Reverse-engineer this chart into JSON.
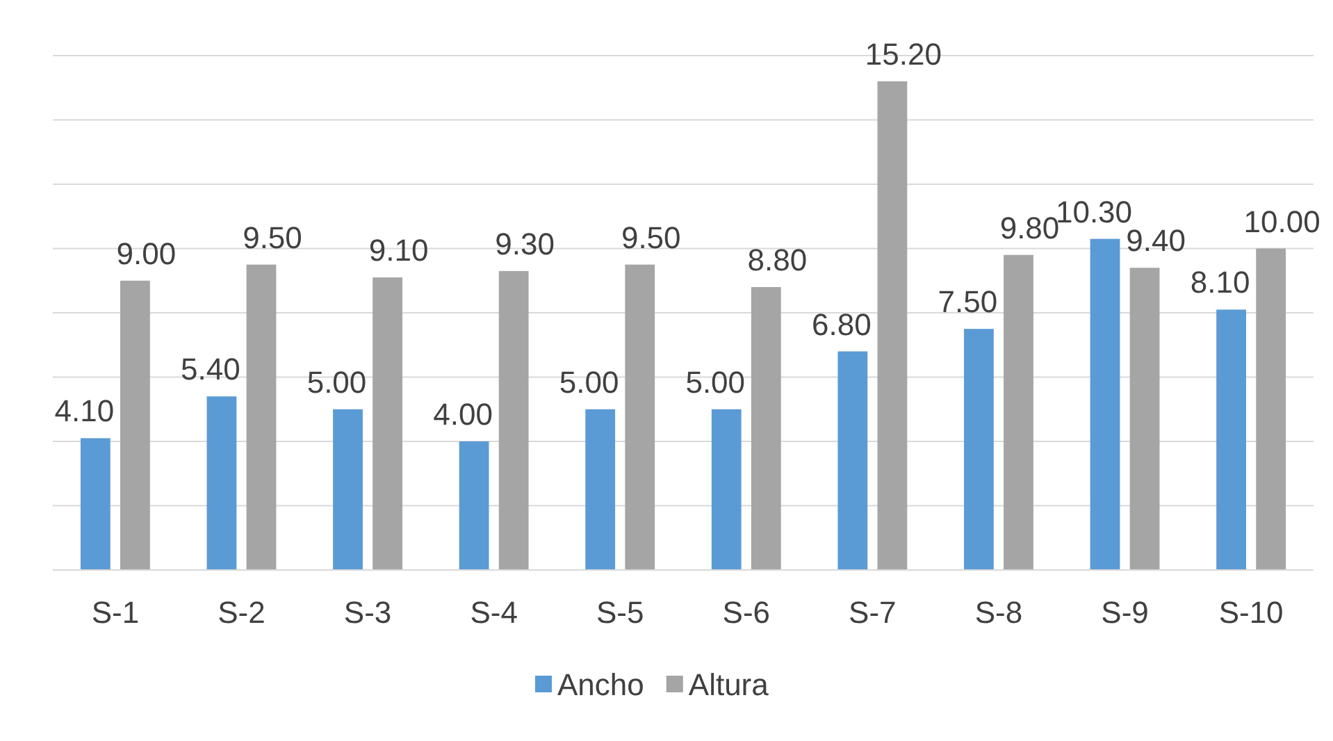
{
  "chart_data": {
    "type": "bar",
    "categories": [
      "S-1",
      "S-2",
      "S-3",
      "S-4",
      "S-5",
      "S-6",
      "S-7",
      "S-8",
      "S-9",
      "S-10"
    ],
    "series": [
      {
        "name": "Ancho",
        "color": "#5b9bd5",
        "values": [
          4.1,
          5.4,
          5.0,
          4.0,
          5.0,
          5.0,
          6.8,
          7.5,
          10.3,
          8.1
        ],
        "value_labels": [
          "4.10",
          "5.40",
          "5.00",
          "4.00",
          "5.00",
          "5.00",
          "6.80",
          "7.50",
          "10.30",
          "8.10"
        ]
      },
      {
        "name": "Altura",
        "color": "#a5a5a5",
        "values": [
          9.0,
          9.5,
          9.1,
          9.3,
          9.5,
          8.8,
          15.2,
          9.8,
          9.4,
          10.0
        ],
        "value_labels": [
          "9.00",
          "9.50",
          "9.10",
          "9.30",
          "9.50",
          "8.80",
          "15.20",
          "9.80",
          "9.40",
          "10.00"
        ]
      }
    ],
    "tick_labels": "x",
    "grid": "y",
    "legend": "bottom"
  }
}
